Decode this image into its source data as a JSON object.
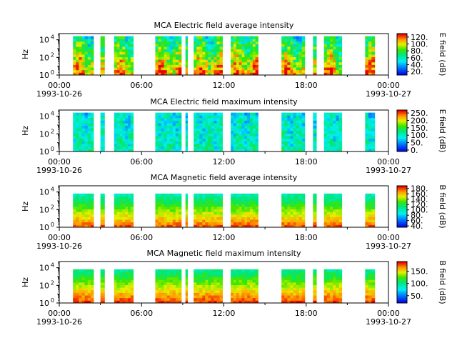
{
  "chart_data": [
    {
      "type": "heatmap",
      "title": "MCA  Electric field average intensity",
      "ylabel": "Hz",
      "yscale": "log",
      "yticks": [
        1,
        100,
        10000
      ],
      "yticklabels": [
        {
          "base": "10",
          "exp": "0"
        },
        {
          "base": "10",
          "exp": "2"
        },
        {
          "base": "10",
          "exp": "4"
        }
      ],
      "xticks": [
        {
          "time": "00:00",
          "date": "1993-10-26"
        },
        {
          "time": "06:00"
        },
        {
          "time": "12:00"
        },
        {
          "time": "18:00"
        },
        {
          "time": "00:00",
          "date": "1993-10-27"
        }
      ],
      "colorbar_label": "E field (dB)",
      "colorbar_ticks": [
        "20.",
        "40.",
        "60.",
        "80.",
        "100.",
        "120."
      ],
      "colorbar_range": [
        10,
        130
      ],
      "z_profile": "avg",
      "data_intervals_hours": [
        [
          1.0,
          2.5
        ],
        [
          3.0,
          3.3
        ],
        [
          4.0,
          5.4
        ],
        [
          7.0,
          8.9
        ],
        [
          9.2,
          9.35
        ],
        [
          9.8,
          11.9
        ],
        [
          12.5,
          14.5
        ],
        [
          16.2,
          17.9
        ],
        [
          18.5,
          18.75
        ],
        [
          19.3,
          20.6
        ],
        [
          22.3,
          23.0
        ]
      ]
    },
    {
      "type": "heatmap",
      "title": "MCA  Electric field maximum intensity",
      "ylabel": "Hz",
      "yscale": "log",
      "yticks": [
        1,
        100,
        10000
      ],
      "yticklabels": [
        {
          "base": "10",
          "exp": "0"
        },
        {
          "base": "10",
          "exp": "2"
        },
        {
          "base": "10",
          "exp": "4"
        }
      ],
      "xticks": [
        {
          "time": "00:00",
          "date": "1993-10-26"
        },
        {
          "time": "06:00"
        },
        {
          "time": "12:00"
        },
        {
          "time": "18:00"
        },
        {
          "time": "00:00",
          "date": "1993-10-27"
        }
      ],
      "colorbar_label": "E field (dB)",
      "colorbar_ticks": [
        "0.",
        "50.",
        "100.",
        "150.",
        "200.",
        "250."
      ],
      "colorbar_range": [
        -10,
        270
      ],
      "z_profile": "max",
      "data_intervals_hours": [
        [
          1.0,
          2.5
        ],
        [
          3.0,
          3.3
        ],
        [
          4.0,
          5.4
        ],
        [
          7.0,
          8.9
        ],
        [
          9.2,
          9.35
        ],
        [
          9.8,
          11.9
        ],
        [
          12.5,
          14.5
        ],
        [
          16.2,
          17.9
        ],
        [
          18.5,
          18.75
        ],
        [
          19.3,
          20.6
        ],
        [
          22.3,
          23.0
        ]
      ]
    },
    {
      "type": "heatmap",
      "title": "MCA  Magnetic field average intensity",
      "ylabel": "Hz",
      "yscale": "log",
      "yticks": [
        1,
        100,
        10000
      ],
      "yticklabels": [
        {
          "base": "10",
          "exp": "0"
        },
        {
          "base": "10",
          "exp": "2"
        },
        {
          "base": "10",
          "exp": "4"
        }
      ],
      "xticks": [
        {
          "time": "00:00",
          "date": "1993-10-26"
        },
        {
          "time": "06:00"
        },
        {
          "time": "12:00"
        },
        {
          "time": "18:00"
        },
        {
          "time": "00:00",
          "date": "1993-10-27"
        }
      ],
      "colorbar_label": "B field (dB)",
      "colorbar_ticks": [
        "40.",
        "60.",
        "80.",
        "100.",
        "120.",
        "140.",
        "160.",
        "180."
      ],
      "colorbar_range": [
        35,
        190
      ],
      "z_profile": "mag",
      "data_intervals_hours": [
        [
          1.0,
          2.5
        ],
        [
          3.0,
          3.3
        ],
        [
          4.0,
          5.4
        ],
        [
          7.0,
          8.9
        ],
        [
          9.2,
          9.35
        ],
        [
          9.8,
          11.9
        ],
        [
          12.5,
          14.5
        ],
        [
          16.2,
          17.9
        ],
        [
          18.5,
          18.75
        ],
        [
          19.3,
          20.6
        ],
        [
          22.3,
          23.0
        ]
      ]
    },
    {
      "type": "heatmap",
      "title": "MCA  Magnetic field maximum intensity",
      "ylabel": "Hz",
      "yscale": "log",
      "yticks": [
        1,
        100,
        10000
      ],
      "yticklabels": [
        {
          "base": "10",
          "exp": "0"
        },
        {
          "base": "10",
          "exp": "2"
        },
        {
          "base": "10",
          "exp": "4"
        }
      ],
      "xticks": [
        {
          "time": "00:00",
          "date": "1993-10-26"
        },
        {
          "time": "06:00"
        },
        {
          "time": "12:00"
        },
        {
          "time": "18:00"
        },
        {
          "time": "00:00",
          "date": "1993-10-27"
        }
      ],
      "colorbar_label": "B field (dB)",
      "colorbar_ticks": [
        "50.",
        "100.",
        "150."
      ],
      "colorbar_range": [
        20,
        190
      ],
      "z_profile": "magmax",
      "data_intervals_hours": [
        [
          1.0,
          2.5
        ],
        [
          3.0,
          3.3
        ],
        [
          4.0,
          5.4
        ],
        [
          7.0,
          8.9
        ],
        [
          9.2,
          9.35
        ],
        [
          9.8,
          11.9
        ],
        [
          12.5,
          14.5
        ],
        [
          16.2,
          17.9
        ],
        [
          18.5,
          18.75
        ],
        [
          19.3,
          20.6
        ],
        [
          22.3,
          23.0
        ]
      ]
    }
  ]
}
